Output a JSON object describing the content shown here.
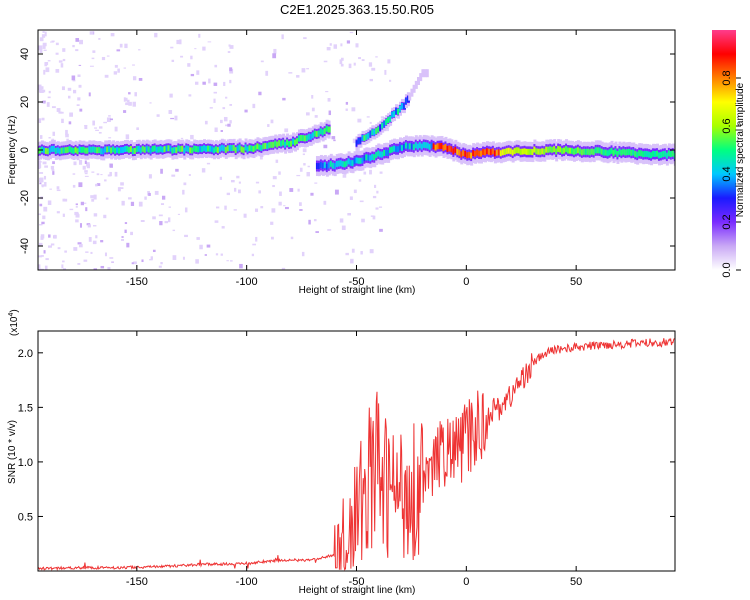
{
  "title": "C2E1.2025.363.15.50.R05",
  "chart_data": [
    {
      "type": "heatmap",
      "name": "spectrogram",
      "xlabel": "Height of straight line (km)",
      "ylabel": "Frequency (Hz)",
      "xlim": [
        -195,
        95
      ],
      "ylim": [
        -50,
        50
      ],
      "xticks": [
        -150,
        -100,
        -50,
        0,
        50
      ],
      "yticks": [
        -40,
        -20,
        0,
        20,
        40
      ],
      "colorbar": {
        "label": "Normalized spectral amplitude",
        "range": [
          0,
          1
        ],
        "ticks": [
          "0.0",
          "0.2",
          "0.4",
          "0.6",
          "0.8"
        ],
        "colors": [
          "#ffffff",
          "#c9a8f5",
          "#7a2bff",
          "#1a1aff",
          "#00c8ff",
          "#00ff80",
          "#a8ff00",
          "#ffff00",
          "#ff8000",
          "#ff0000",
          "#ff3c8c"
        ]
      },
      "ridges": [
        {
          "name": "main-band",
          "points": [
            [
              -195,
              0
            ],
            [
              -150,
              0
            ],
            [
              -100,
              0.5
            ],
            [
              -80,
              3
            ],
            [
              -62,
              9
            ]
          ]
        },
        {
          "name": "upper-branch",
          "points": [
            [
              -50,
              3
            ],
            [
              -40,
              9
            ],
            [
              -28,
              19
            ],
            [
              -20,
              32
            ]
          ]
        },
        {
          "name": "lower-branch",
          "points": [
            [
              -68,
              -7
            ],
            [
              -58,
              -6
            ],
            [
              -52,
              -5
            ],
            [
              -40,
              -2
            ],
            [
              -30,
              1
            ],
            [
              -22,
              2
            ],
            [
              -10,
              1
            ],
            [
              0,
              -2
            ],
            [
              10,
              -1
            ],
            [
              40,
              0
            ],
            [
              95,
              -2
            ]
          ]
        }
      ]
    },
    {
      "type": "line",
      "name": "snr",
      "xlabel": "Height of straight line (km)",
      "ylabel": "SNR (10 * v/v)",
      "y_scale_label": "(x10",
      "y_scale_exp": "4",
      "xlim": [
        -195,
        95
      ],
      "ylim": [
        0,
        2.2
      ],
      "xticks": [
        -150,
        -100,
        -50,
        0,
        50
      ],
      "yticks": [
        "0.5",
        "1.0",
        "1.5",
        "2.0"
      ],
      "color": "#ee3333",
      "series": [
        {
          "name": "SNR",
          "x": [
            -195,
            -180,
            -160,
            -140,
            -120,
            -100,
            -85,
            -70,
            -60,
            -55,
            -50,
            -45,
            -42,
            -40,
            -38,
            -35,
            -30,
            -25,
            -22,
            -20,
            -17,
            -15,
            -10,
            -5,
            0,
            5,
            10,
            15,
            20,
            25,
            30,
            35,
            40,
            50,
            60,
            70,
            80,
            95
          ],
          "y": [
            0.02,
            0.03,
            0.03,
            0.04,
            0.06,
            0.07,
            0.1,
            0.1,
            0.15,
            0.3,
            0.5,
            0.8,
            1.0,
            0.9,
            0.8,
            0.75,
            0.7,
            0.8,
            0.7,
            0.9,
            0.8,
            1.0,
            1.1,
            1.1,
            1.2,
            1.3,
            1.45,
            1.5,
            1.6,
            1.75,
            1.9,
            1.98,
            2.03,
            2.05,
            2.07,
            2.08,
            2.09,
            2.1
          ]
        }
      ]
    }
  ]
}
